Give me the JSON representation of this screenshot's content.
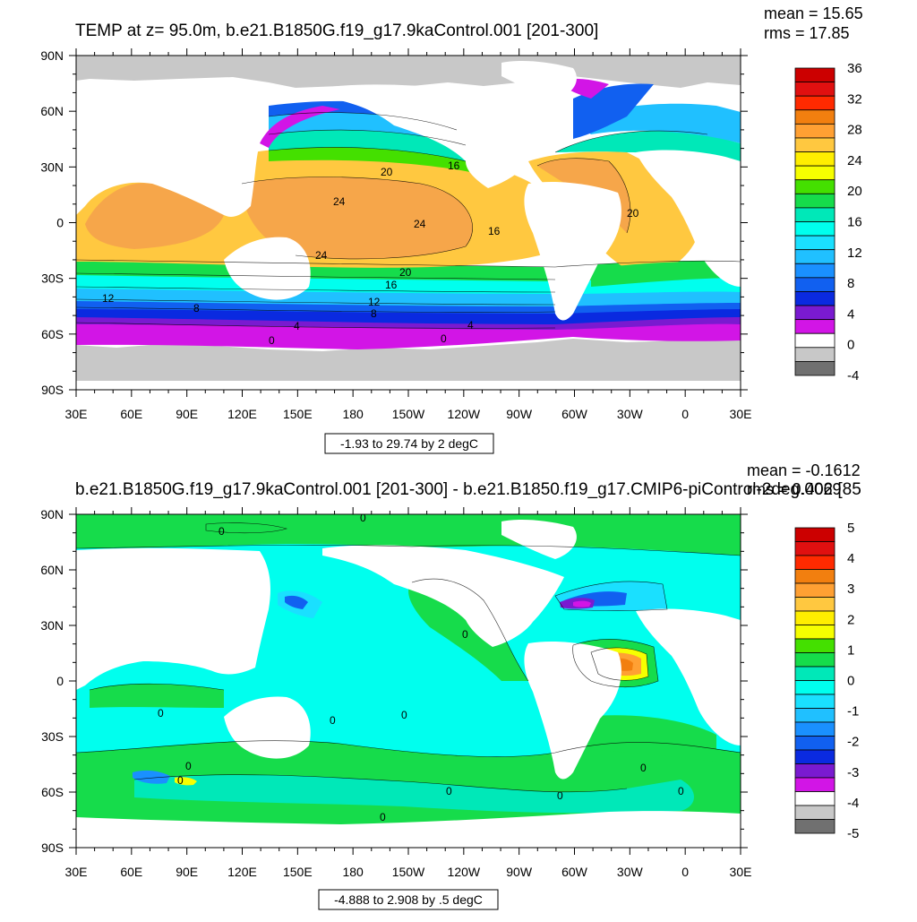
{
  "chart_data": [
    {
      "type": "heatmap",
      "title": "TEMP at z=  95.0m, b.e21.B1850G.f19_g17.9kaControl.001 [201-300]",
      "stats": {
        "mean": "mean = 15.65",
        "rms": "rms = 17.85"
      },
      "range_note": "-1.93 to 29.74 by 2 degC",
      "x_ticks": [
        "30E",
        "60E",
        "90E",
        "120E",
        "150E",
        "180",
        "150W",
        "120W",
        "90W",
        "60W",
        "30W",
        "0",
        "30E"
      ],
      "y_ticks": [
        "90N",
        "60N",
        "30N",
        "0",
        "30S",
        "60S",
        "90S"
      ],
      "colorbar": {
        "labels": [
          "36",
          "32",
          "28",
          "24",
          "20",
          "16",
          "12",
          "8",
          "4",
          "0",
          "-4"
        ],
        "colors": [
          "#cc0000",
          "#e01010",
          "#ff2a00",
          "#f27f0f",
          "#ffa033",
          "#ffc840",
          "#ffee00",
          "#f6ff00",
          "#44e000",
          "#16dc4b",
          "#00e8b8",
          "#00ffee",
          "#1ae0ff",
          "#20c0ff",
          "#1a90ff",
          "#1160f0",
          "#0a2ae0",
          "#7a1ad0",
          "#d215e6",
          "#ffffff",
          "#c8c8c8",
          "#707070"
        ]
      },
      "contour_labels": [
        "20",
        "16",
        "24",
        "24",
        "16",
        "20",
        "20",
        "24",
        "12",
        "8",
        "20",
        "16",
        "12",
        "8",
        "4",
        "4",
        "0",
        "0"
      ]
    },
    {
      "type": "heatmap",
      "title": "b.e21.B1850G.f19_g17.9kaControl.001 [201-300] - b.e21.B1850.f19_g17.CMIP6-piControl-2deg.002 [85",
      "stats": {
        "mean": "mean = -0.1612",
        "rms": "rms = 0.4069"
      },
      "range_note": "-4.888 to 2.908 by .5 degC",
      "x_ticks": [
        "30E",
        "60E",
        "90E",
        "120E",
        "150E",
        "180",
        "150W",
        "120W",
        "90W",
        "60W",
        "30W",
        "0",
        "30E"
      ],
      "y_ticks": [
        "90N",
        "60N",
        "30N",
        "0",
        "30S",
        "60S",
        "90S"
      ],
      "colorbar": {
        "labels": [
          "5",
          "4",
          "3",
          "2",
          "1",
          "0",
          "-1",
          "-2",
          "-3",
          "-4",
          "-5"
        ],
        "colors": [
          "#cc0000",
          "#e01010",
          "#ff2a00",
          "#f27f0f",
          "#ffa033",
          "#ffc840",
          "#ffee00",
          "#f6ff00",
          "#44e000",
          "#16dc4b",
          "#00e8b8",
          "#00ffee",
          "#1ae0ff",
          "#20c0ff",
          "#1a90ff",
          "#1160f0",
          "#0a2ae0",
          "#7a1ad0",
          "#d215e6",
          "#ffffff",
          "#c8c8c8",
          "#707070"
        ]
      },
      "contour_labels": [
        "0",
        "0",
        "0",
        "0",
        "0",
        "0",
        "0",
        "0",
        "0",
        "0",
        "0",
        "0",
        "0"
      ]
    }
  ]
}
